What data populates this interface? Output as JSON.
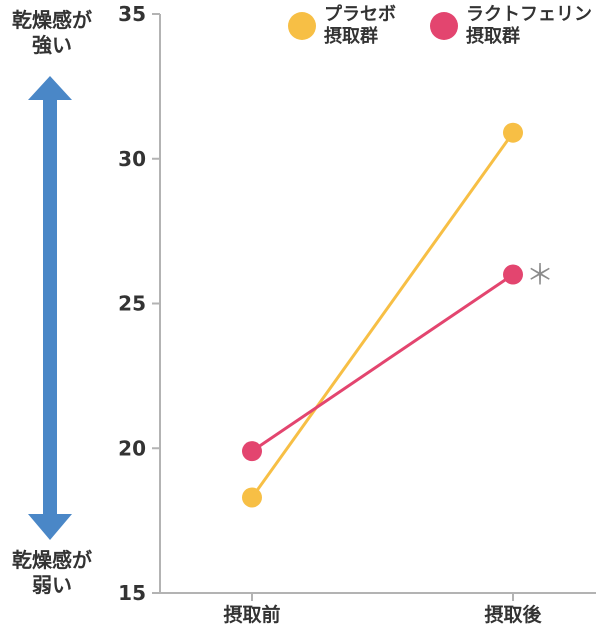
{
  "side_labels": {
    "top": [
      "乾燥感が",
      "強い"
    ],
    "bottom": [
      "乾燥感が",
      "弱い"
    ]
  },
  "legend": [
    {
      "line1": "プラセボ",
      "line2": "摂取群",
      "color": "#f7bf45"
    },
    {
      "line1": "ラクトフェリン",
      "line2": "摂取群",
      "color": "#e3456f"
    }
  ],
  "colors": {
    "arrow": "#4a87c7",
    "axis": "#b3b3b3",
    "text": "#333333",
    "asterisk": "#8c8c8c"
  },
  "chart_data": {
    "type": "line",
    "categories": [
      "摂取前",
      "摂取後"
    ],
    "series": [
      {
        "name": "プラセボ 摂取群",
        "values": [
          18.3,
          30.9
        ],
        "color": "#f7bf45"
      },
      {
        "name": "ラクトフェリン 摂取群",
        "values": [
          19.9,
          26.0
        ],
        "color": "#e3456f"
      }
    ],
    "ylim": [
      15,
      35
    ],
    "yticks": [
      15,
      20,
      25,
      30,
      35
    ],
    "yticklabels": [
      "15",
      "20",
      "25",
      "30",
      "35"
    ],
    "annotation": "＊",
    "grid": false
  }
}
